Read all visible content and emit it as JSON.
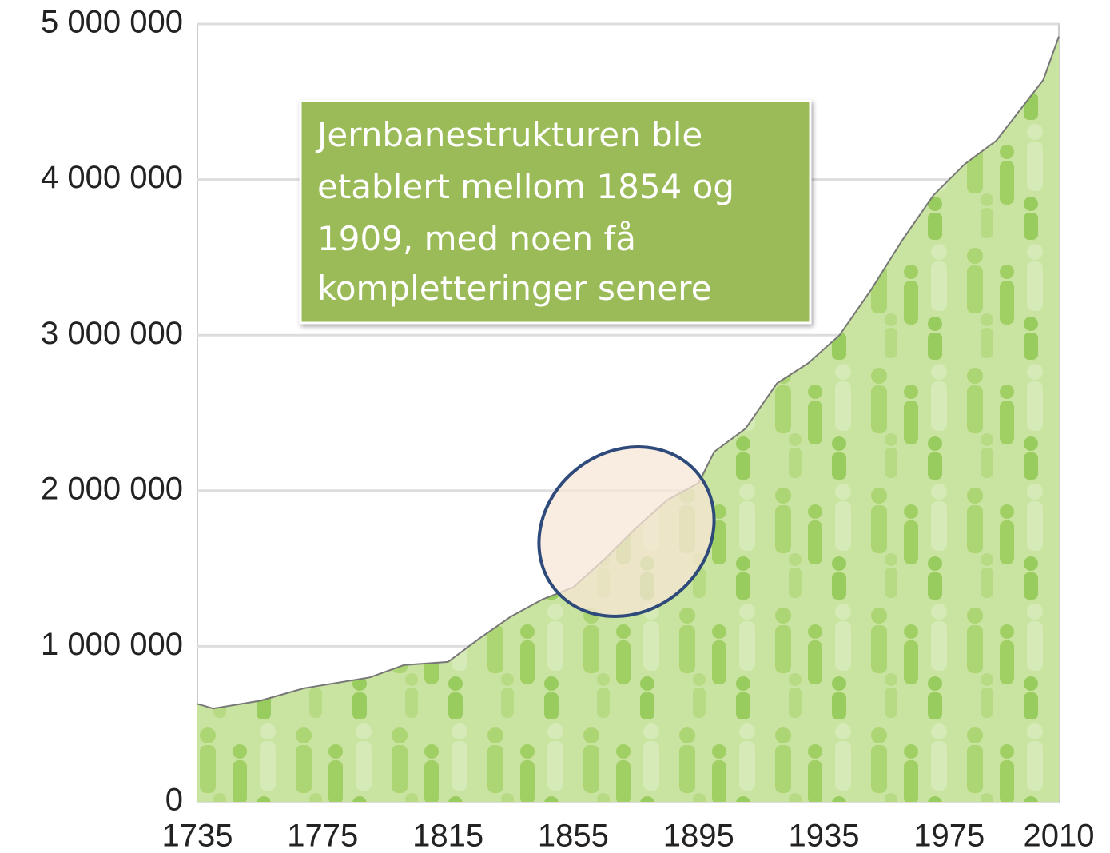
{
  "chart_data": {
    "type": "area",
    "x": [
      1735,
      1740,
      1755,
      1769,
      1790,
      1801,
      1815,
      1825,
      1835,
      1845,
      1855,
      1865,
      1875,
      1885,
      1895,
      1900,
      1910,
      1920,
      1930,
      1940,
      1950,
      1960,
      1970,
      1980,
      1990,
      2000,
      2005,
      2010
    ],
    "values": [
      630000,
      600000,
      650000,
      730000,
      800000,
      880000,
      900000,
      1050000,
      1190000,
      1300000,
      1380000,
      1560000,
      1760000,
      1940000,
      2050000,
      2250000,
      2400000,
      2690000,
      2820000,
      3000000,
      3290000,
      3610000,
      3900000,
      4100000,
      4250000,
      4510000,
      4640000,
      4920000
    ],
    "color": "#b9dc86",
    "line_color": "#777777",
    "xlim": [
      1735,
      2010
    ],
    "xticks": [
      1735,
      1775,
      1815,
      1855,
      1895,
      1935,
      1975,
      2010
    ],
    "ylim": [
      0,
      5000000
    ],
    "yticks": [
      0,
      {
        "value": 1000000,
        "label": "1 000 000"
      },
      {
        "value": 2000000,
        "label": "2 000 000"
      },
      {
        "value": 3000000,
        "label": "3 000 000"
      },
      {
        "value": 4000000,
        "label": "4 000 000"
      },
      {
        "value": 5000000,
        "label": "5 000 000"
      }
    ],
    "grid": true,
    "annotation": [
      "Jernbanestrukturen ble",
      "etablert mellom 1854 og",
      "1909, med noen få",
      "kompletteringer senere"
    ]
  }
}
